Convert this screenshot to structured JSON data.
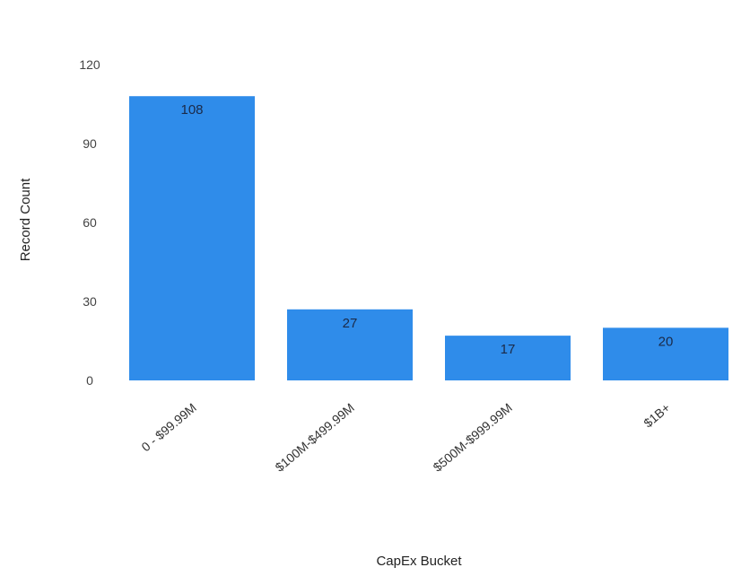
{
  "chart_data": {
    "type": "bar",
    "title": "",
    "xlabel": "CapEx Bucket",
    "ylabel": "Record Count",
    "categories": [
      "0 - $99.99M",
      "$100M-$499.99M",
      "$500M-$999.99M",
      "$1B+"
    ],
    "values": [
      108,
      27,
      17,
      20
    ],
    "data_labels": [
      "108",
      "27",
      "17",
      "20"
    ],
    "yticks": [
      0,
      30,
      60,
      90,
      120
    ],
    "ylim": [
      0,
      120
    ],
    "grid": false,
    "legend": "none",
    "colors": {
      "bar": "#2f8cea",
      "bar_label": "#1b2a48"
    }
  }
}
